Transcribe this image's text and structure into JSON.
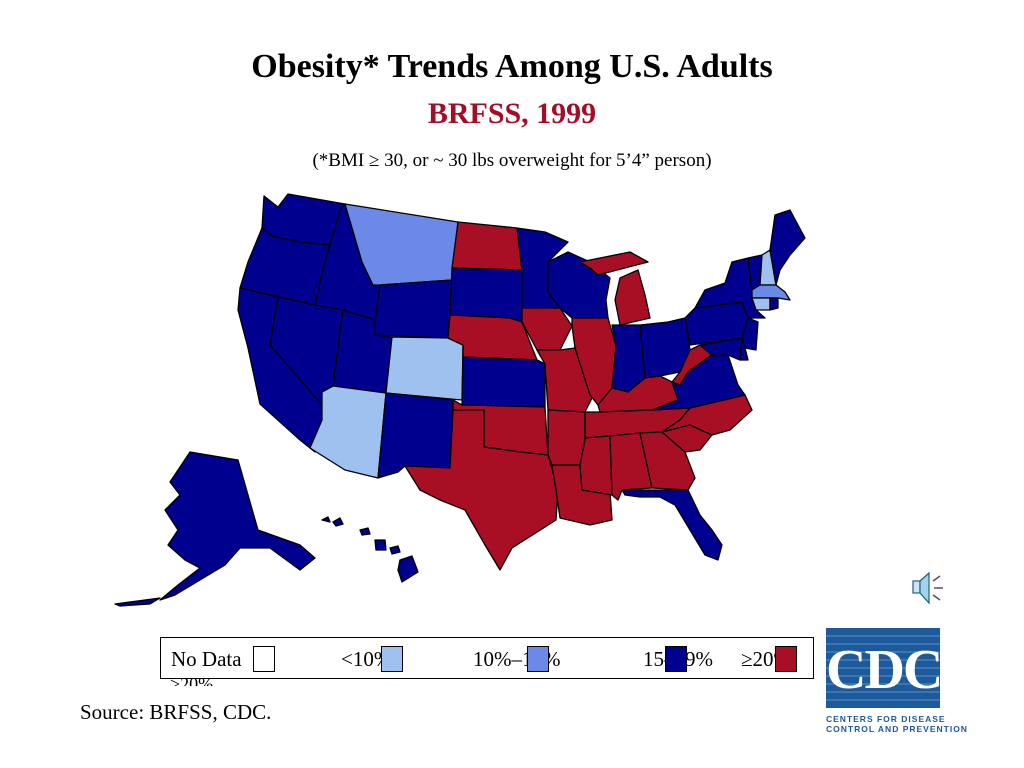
{
  "title": "Obesity* Trends Among U.S. Adults",
  "subtitle": "BRFSS, 1999",
  "note": "(*BMI ≥ 30, or ~ 30 lbs overweight for 5’4” person)",
  "colors": {
    "no_data": "#ffffff",
    "lt10": "#9ec1f0",
    "p10_14": "#6b8ae8",
    "p15_19": "#00008f",
    "ge20": "#a80f24",
    "subtitle": "#a30d28",
    "cdc_blue": "#1d5a9c"
  },
  "legend": {
    "no_data": "No Data",
    "lt10": "<10%",
    "p10_14": "10%–14%",
    "p15_19": "15–19%",
    "ge20": "≥20%"
  },
  "legend_overflow": ">20%",
  "source": "Source: BRFSS, CDC.",
  "logo": {
    "letters": "CDC",
    "line1": "CENTERS FOR DISEASE",
    "line2": "CONTROL AND PREVENTION"
  },
  "icons": {
    "speaker": "speaker-icon"
  },
  "regions": [
    {
      "id": "WA",
      "category": "15-19%"
    },
    {
      "id": "OR",
      "category": "15-19%"
    },
    {
      "id": "CA",
      "category": "15-19%"
    },
    {
      "id": "NV",
      "category": "15-19%"
    },
    {
      "id": "ID",
      "category": "15-19%"
    },
    {
      "id": "MT",
      "category": "10%-14%"
    },
    {
      "id": "WY",
      "category": "15-19%"
    },
    {
      "id": "UT",
      "category": "15-19%"
    },
    {
      "id": "CO",
      "category": "<10%"
    },
    {
      "id": "AZ",
      "category": "<10%"
    },
    {
      "id": "NM",
      "category": "15-19%"
    },
    {
      "id": "ND",
      "category": ">=20%"
    },
    {
      "id": "SD",
      "category": "15-19%"
    },
    {
      "id": "NE",
      "category": ">=20%"
    },
    {
      "id": "KS",
      "category": "15-19%"
    },
    {
      "id": "OK",
      "category": ">=20%"
    },
    {
      "id": "TX",
      "category": ">=20%"
    },
    {
      "id": "MN",
      "category": "15-19%"
    },
    {
      "id": "IA",
      "category": ">=20%"
    },
    {
      "id": "MO",
      "category": ">=20%"
    },
    {
      "id": "AR",
      "category": ">=20%"
    },
    {
      "id": "LA",
      "category": ">=20%"
    },
    {
      "id": "WI",
      "category": "15-19%"
    },
    {
      "id": "IL",
      "category": ">=20%"
    },
    {
      "id": "MI",
      "category": ">=20%"
    },
    {
      "id": "IN",
      "category": "15-19%"
    },
    {
      "id": "OH",
      "category": "15-19%"
    },
    {
      "id": "KY",
      "category": ">=20%"
    },
    {
      "id": "TN",
      "category": ">=20%"
    },
    {
      "id": "MS",
      "category": ">=20%"
    },
    {
      "id": "AL",
      "category": ">=20%"
    },
    {
      "id": "GA",
      "category": ">=20%"
    },
    {
      "id": "FL",
      "category": "15-19%"
    },
    {
      "id": "SC",
      "category": ">=20%"
    },
    {
      "id": "NC",
      "category": ">=20%"
    },
    {
      "id": "VA",
      "category": "15-19%"
    },
    {
      "id": "WV",
      "category": ">=20%"
    },
    {
      "id": "PA",
      "category": "15-19%"
    },
    {
      "id": "NY",
      "category": "15-19%"
    },
    {
      "id": "VT",
      "category": "15-19%"
    },
    {
      "id": "NH",
      "category": "<10%"
    },
    {
      "id": "ME",
      "category": "15-19%"
    },
    {
      "id": "MA",
      "category": "10%-14%"
    },
    {
      "id": "CT",
      "category": "<10%"
    },
    {
      "id": "RI",
      "category": "15-19%"
    },
    {
      "id": "NJ",
      "category": "15-19%"
    },
    {
      "id": "DE",
      "category": "15-19%"
    },
    {
      "id": "MD",
      "category": "15-19%"
    },
    {
      "id": "AK",
      "category": "15-19%"
    },
    {
      "id": "HI",
      "category": "15-19%"
    }
  ]
}
